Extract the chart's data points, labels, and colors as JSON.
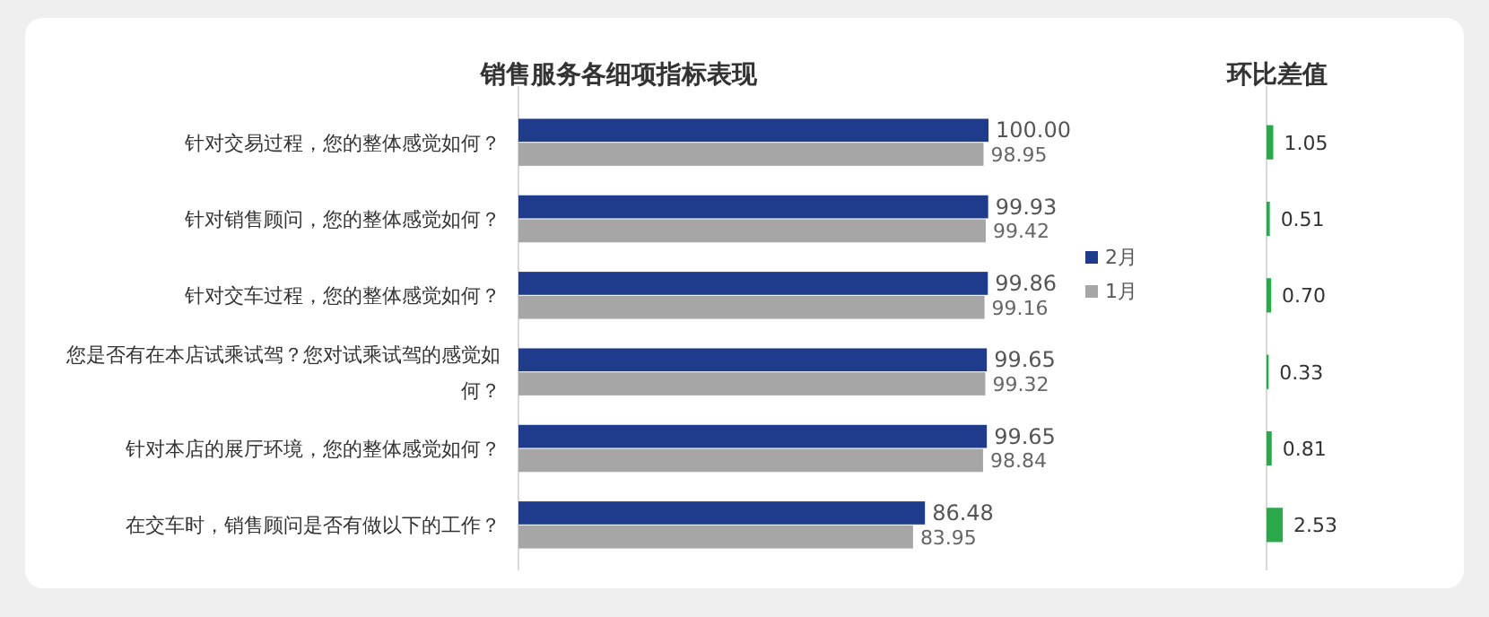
{
  "chart_data": [
    {
      "type": "bar",
      "orientation": "horizontal",
      "title": "销售服务各细项指标表现",
      "categories": [
        "针对交易过程，您的整体感觉如何？",
        "针对销售顾问，您的整体感觉如何？",
        "针对交车过程，您的整体感觉如何？",
        "您是否有在本店试乘试驾？您对试乘试驾的感觉如何？",
        "针对本店的展厅环境，您的整体感觉如何？",
        "在交车时，销售顾问是否有做以下的工作？"
      ],
      "series": [
        {
          "name": "2月",
          "color": "#1f3b8c",
          "values": [
            100.0,
            99.93,
            99.86,
            99.65,
            99.65,
            86.48
          ],
          "value_labels": [
            "100.00",
            "99.93",
            "99.86",
            "99.65",
            "99.65",
            "86.48"
          ]
        },
        {
          "name": "1月",
          "color": "#a6a6a6",
          "values": [
            98.95,
            99.42,
            99.16,
            99.32,
            98.84,
            83.95
          ],
          "value_labels": [
            "98.95",
            "99.42",
            "99.16",
            "99.32",
            "98.84",
            "83.95"
          ]
        }
      ],
      "legend": "right"
    },
    {
      "type": "bar",
      "orientation": "horizontal",
      "title": "环比差值",
      "categories": [
        null,
        null,
        null,
        null,
        null,
        null
      ],
      "values": [
        1.05,
        0.51,
        0.7,
        0.33,
        0.81,
        2.53
      ],
      "value_labels": [
        "1.05",
        "0.51",
        "0.70",
        "0.33",
        "0.81",
        "2.53"
      ],
      "color": "#2ba84a"
    }
  ]
}
